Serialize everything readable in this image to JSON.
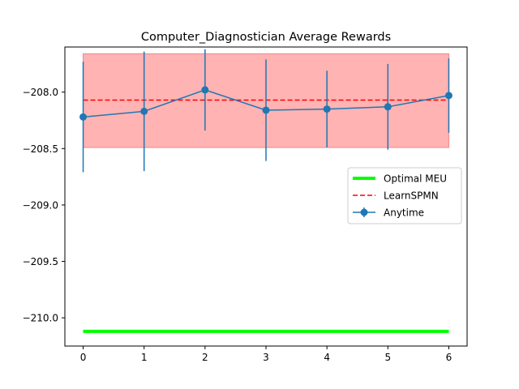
{
  "chart_data": {
    "type": "line",
    "title": "Computer_Diagnostician Average Rewards",
    "xlabel": "",
    "ylabel": "",
    "xlim": [
      -0.3,
      6.3
    ],
    "ylim": [
      -210.25,
      -207.6
    ],
    "x_ticks": [
      0,
      1,
      2,
      3,
      4,
      5,
      6
    ],
    "x_tick_labels": [
      "0",
      "1",
      "2",
      "3",
      "4",
      "5",
      "6"
    ],
    "y_ticks": [
      -210.0,
      -209.5,
      -209.0,
      -208.5,
      -208.0
    ],
    "y_tick_labels": [
      "−210.0",
      "−209.5",
      "−209.0",
      "−208.5",
      "−208.0"
    ],
    "grid": false,
    "legend_position": "center-right",
    "series": [
      {
        "name": "Optimal MEU",
        "kind": "hline",
        "y": -210.12,
        "x_range": [
          0,
          6
        ],
        "color": "#00ff00",
        "style": "solid"
      },
      {
        "name": "LearnSPMN",
        "kind": "hline",
        "y": -208.07,
        "x_range": [
          0,
          6
        ],
        "band": [
          -208.49,
          -207.66
        ],
        "color": "#ff0000",
        "band_color": "#ffb3b3",
        "style": "dashed"
      },
      {
        "name": "Anytime",
        "kind": "errorbar",
        "x": [
          0,
          1,
          2,
          3,
          4,
          5,
          6
        ],
        "y": [
          -208.22,
          -208.17,
          -207.98,
          -208.16,
          -208.15,
          -208.13,
          -208.03
        ],
        "yerr": [
          0.49,
          0.53,
          0.36,
          0.45,
          0.34,
          0.38,
          0.33
        ],
        "color": "#1f77b4",
        "style": "solid-marker"
      }
    ]
  }
}
